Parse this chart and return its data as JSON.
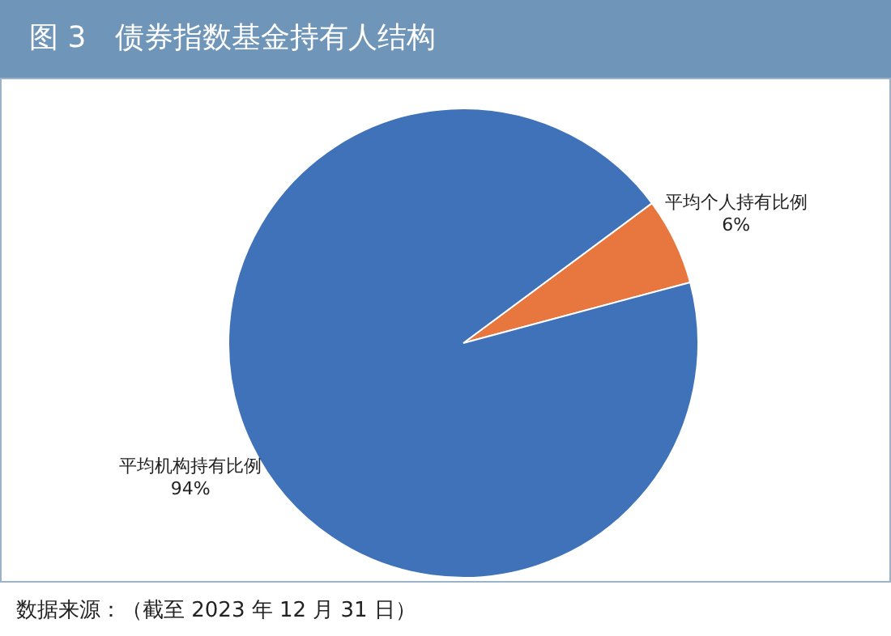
{
  "chart_data": {
    "type": "pie",
    "title": "图 3　债券指数基金持有人结构",
    "categories": [
      "平均个人持有比例",
      "平均机构持有比例"
    ],
    "values": [
      6,
      94
    ],
    "colors": [
      "#e8773f",
      "#3f72b8"
    ],
    "value_labels": [
      "6%",
      "94%"
    ],
    "annotations": [
      "数据来源：（截至 2023 年 12 月 31 日）"
    ]
  }
}
